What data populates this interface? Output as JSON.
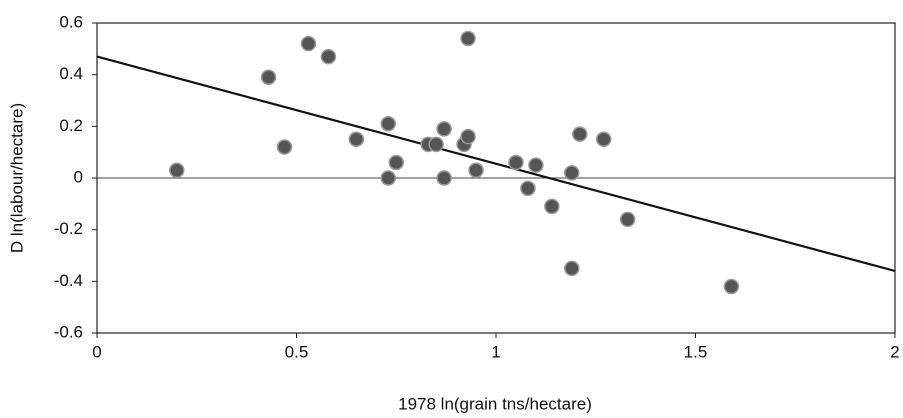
{
  "chart_data": {
    "type": "scatter",
    "x_label": "1978 ln(grain tns/hectare)",
    "y_label": "D ln(labour/hectare)",
    "x": [
      0.2,
      0.43,
      0.47,
      0.53,
      0.58,
      0.65,
      0.73,
      0.73,
      0.75,
      0.83,
      0.85,
      0.87,
      0.87,
      0.92,
      0.93,
      0.93,
      0.95,
      1.05,
      1.08,
      1.1,
      1.14,
      1.19,
      1.19,
      1.21,
      1.27,
      1.33,
      1.59
    ],
    "values": [
      0.03,
      0.39,
      0.12,
      0.52,
      0.47,
      0.15,
      0.21,
      0.0,
      0.06,
      0.13,
      0.13,
      0.19,
      0.0,
      0.13,
      0.16,
      0.54,
      0.03,
      0.06,
      -0.04,
      0.05,
      -0.11,
      0.02,
      -0.35,
      0.17,
      0.15,
      -0.16,
      -0.42
    ],
    "color": "#555555",
    "trend_line": {
      "x": [
        0,
        2
      ],
      "y": [
        0.47,
        -0.36
      ]
    },
    "hline": 0,
    "xlim": [
      0,
      2
    ],
    "xticks": [
      0,
      0.5,
      1,
      1.5,
      2
    ],
    "ylim": [
      -0.6,
      0.6
    ],
    "yticks": [
      -0.6,
      -0.4,
      -0.2,
      0,
      0.2,
      0.4,
      0.6
    ]
  }
}
